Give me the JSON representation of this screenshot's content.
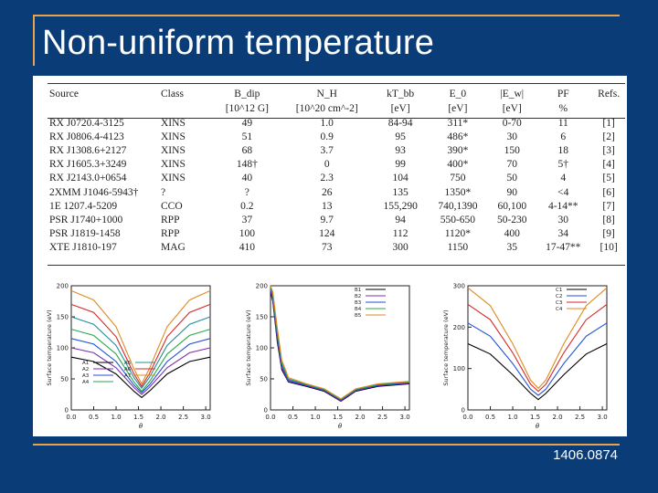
{
  "slide": {
    "title": "Non-uniform temperature",
    "footer": "1406.0874"
  },
  "table": {
    "headers": [
      "Source",
      "Class",
      "B_dip",
      "N_H",
      "kT_bb",
      "E_0",
      "|E_w|",
      "PF",
      "Refs."
    ],
    "units": [
      "",
      "",
      "[10^12 G]",
      "[10^20 cm^-2]",
      "[eV]",
      "[eV]",
      "[eV]",
      "%",
      ""
    ],
    "rows": [
      [
        "RX J0720.4-3125",
        "XINS",
        "49",
        "1.0",
        "84-94",
        "311*",
        "0-70",
        "11",
        "[1]"
      ],
      [
        "RX J0806.4-4123",
        "XINS",
        "51",
        "0.9",
        "95",
        "486*",
        "30",
        "6",
        "[2]"
      ],
      [
        "RX J1308.6+2127",
        "XINS",
        "68",
        "3.7",
        "93",
        "390*",
        "150",
        "18",
        "[3]"
      ],
      [
        "RX J1605.3+3249",
        "XINS",
        "148†",
        "0",
        "99",
        "400*",
        "70",
        "5†",
        "[4]"
      ],
      [
        "RX J2143.0+0654",
        "XINS",
        "40",
        "2.3",
        "104",
        "750",
        "50",
        "4",
        "[5]"
      ],
      [
        "2XMM J1046-5943†",
        "?",
        "?",
        "26",
        "135",
        "1350*",
        "90",
        "<4",
        "[6]"
      ],
      [
        "1E 1207.4-5209",
        "CCO",
        "0.2",
        "13",
        "155,290",
        "740,1390",
        "60,100",
        "4-14**",
        "[7]"
      ],
      [
        "PSR J1740+1000",
        "RPP",
        "37",
        "9.7",
        "94",
        "550-650",
        "50-230",
        "30",
        "[8]"
      ],
      [
        "PSR J1819-1458",
        "RPP",
        "100",
        "124",
        "112",
        "1120*",
        "400",
        "34",
        "[9]"
      ],
      [
        "XTE J1810-197",
        "MAG",
        "410",
        "73",
        "300",
        "1150",
        "35",
        "17-47**",
        "[10]"
      ]
    ]
  },
  "chart_data": [
    {
      "type": "line",
      "xlabel": "θ",
      "ylabel": "Surface temperature (eV)",
      "xlim": [
        0,
        3.1
      ],
      "ylim": [
        0,
        200
      ],
      "xticks": [
        "0.0",
        "0.5",
        "1.0",
        "1.5",
        "2.0",
        "2.5",
        "3.0"
      ],
      "yticks": [
        "0",
        "50",
        "100",
        "150",
        "200"
      ],
      "legend_position": "bottom-left",
      "series": [
        {
          "name": "A1",
          "color": "#000000",
          "values": [
            [
              0,
              85
            ],
            [
              0.5,
              78
            ],
            [
              1.0,
              58
            ],
            [
              1.4,
              30
            ],
            [
              1.57,
              20
            ],
            [
              1.74,
              30
            ],
            [
              2.14,
              58
            ],
            [
              2.64,
              78
            ],
            [
              3.14,
              85
            ]
          ]
        },
        {
          "name": "A2",
          "color": "#7b2fb0",
          "values": [
            [
              0,
              100
            ],
            [
              0.5,
              92
            ],
            [
              1.0,
              68
            ],
            [
              1.4,
              36
            ],
            [
              1.57,
              25
            ],
            [
              1.74,
              36
            ],
            [
              2.14,
              68
            ],
            [
              2.64,
              92
            ],
            [
              3.14,
              100
            ]
          ]
        },
        {
          "name": "A3",
          "color": "#1f4fd8",
          "values": [
            [
              0,
              115
            ],
            [
              0.5,
              106
            ],
            [
              1.0,
              78
            ],
            [
              1.4,
              40
            ],
            [
              1.57,
              28
            ],
            [
              1.74,
              40
            ],
            [
              2.14,
              78
            ],
            [
              2.64,
              106
            ],
            [
              3.14,
              115
            ]
          ]
        },
        {
          "name": "A4",
          "color": "#2aa84a",
          "values": [
            [
              0,
              130
            ],
            [
              0.5,
              120
            ],
            [
              1.0,
              90
            ],
            [
              1.4,
              45
            ],
            [
              1.57,
              30
            ],
            [
              1.74,
              45
            ],
            [
              2.14,
              90
            ],
            [
              2.64,
              120
            ],
            [
              3.14,
              130
            ]
          ]
        },
        {
          "name": "A5",
          "color": "#1f8f9a",
          "values": [
            [
              0,
              150
            ],
            [
              0.5,
              138
            ],
            [
              1.0,
              104
            ],
            [
              1.4,
              52
            ],
            [
              1.57,
              35
            ],
            [
              1.74,
              52
            ],
            [
              2.14,
              104
            ],
            [
              2.64,
              138
            ],
            [
              3.14,
              150
            ]
          ]
        },
        {
          "name": "A6",
          "color": "#d62728",
          "values": [
            [
              0,
              170
            ],
            [
              0.5,
              157
            ],
            [
              1.0,
              118
            ],
            [
              1.4,
              58
            ],
            [
              1.57,
              38
            ],
            [
              1.74,
              58
            ],
            [
              2.14,
              118
            ],
            [
              2.64,
              157
            ],
            [
              3.14,
              170
            ]
          ]
        },
        {
          "name": "A7",
          "color": "#e08a1e",
          "values": [
            [
              0,
              192
            ],
            [
              0.5,
              177
            ],
            [
              1.0,
              134
            ],
            [
              1.4,
              66
            ],
            [
              1.57,
              42
            ],
            [
              1.74,
              66
            ],
            [
              2.14,
              134
            ],
            [
              2.64,
              177
            ],
            [
              3.14,
              192
            ]
          ]
        }
      ]
    },
    {
      "type": "line",
      "xlabel": "θ",
      "ylabel": "Surface temperature (eV)",
      "xlim": [
        0,
        3.1
      ],
      "ylim": [
        0,
        200
      ],
      "xticks": [
        "0.0",
        "0.5",
        "1.0",
        "1.5",
        "2.0",
        "2.5",
        "3.0"
      ],
      "yticks": [
        "0",
        "50",
        "100",
        "150",
        "200"
      ],
      "legend_position": "top-right",
      "series": [
        {
          "name": "B1",
          "color": "#000000",
          "values": [
            [
              0,
              190
            ],
            [
              0.05,
              175
            ],
            [
              0.15,
              110
            ],
            [
              0.25,
              65
            ],
            [
              0.4,
              45
            ],
            [
              0.8,
              38
            ],
            [
              1.2,
              30
            ],
            [
              1.57,
              14
            ],
            [
              1.9,
              30
            ],
            [
              2.4,
              38
            ],
            [
              3.14,
              42
            ]
          ]
        },
        {
          "name": "B2",
          "color": "#7b2fb0",
          "values": [
            [
              0,
              192
            ],
            [
              0.05,
              178
            ],
            [
              0.15,
              115
            ],
            [
              0.25,
              68
            ],
            [
              0.4,
              46
            ],
            [
              0.8,
              39
            ],
            [
              1.2,
              31
            ],
            [
              1.57,
              15
            ],
            [
              1.9,
              31
            ],
            [
              2.4,
              39
            ],
            [
              3.14,
              43
            ]
          ]
        },
        {
          "name": "B3",
          "color": "#1f4fd8",
          "values": [
            [
              0,
              195
            ],
            [
              0.05,
              182
            ],
            [
              0.15,
              120
            ],
            [
              0.25,
              72
            ],
            [
              0.4,
              48
            ],
            [
              0.8,
              40
            ],
            [
              1.2,
              32
            ],
            [
              1.57,
              16
            ],
            [
              1.9,
              32
            ],
            [
              2.4,
              40
            ],
            [
              3.14,
              44
            ]
          ]
        },
        {
          "name": "B4",
          "color": "#2aa84a",
          "values": [
            [
              0,
              198
            ],
            [
              0.05,
              186
            ],
            [
              0.15,
              126
            ],
            [
              0.25,
              76
            ],
            [
              0.4,
              50
            ],
            [
              0.8,
              41
            ],
            [
              1.2,
              33
            ],
            [
              1.57,
              17
            ],
            [
              1.9,
              33
            ],
            [
              2.4,
              41
            ],
            [
              3.14,
              45
            ]
          ]
        },
        {
          "name": "B5",
          "color": "#e08a1e",
          "values": [
            [
              0,
              200
            ],
            [
              0.05,
              190
            ],
            [
              0.15,
              132
            ],
            [
              0.25,
              80
            ],
            [
              0.4,
              52
            ],
            [
              0.8,
              42
            ],
            [
              1.2,
              34
            ],
            [
              1.57,
              18
            ],
            [
              1.9,
              34
            ],
            [
              2.4,
              42
            ],
            [
              3.14,
              46
            ]
          ]
        }
      ]
    },
    {
      "type": "line",
      "xlabel": "θ",
      "ylabel": "Surface temperature (eV)",
      "xlim": [
        0,
        3.1
      ],
      "ylim": [
        0,
        300
      ],
      "xticks": [
        "0.0",
        "0.5",
        "1.0",
        "1.5",
        "2.0",
        "2.5",
        "3.0"
      ],
      "yticks": [
        "0",
        "100",
        "200",
        "300"
      ],
      "legend_position": "top-right",
      "series": [
        {
          "name": "C1",
          "color": "#000000",
          "values": [
            [
              0,
              160
            ],
            [
              0.5,
              135
            ],
            [
              1.0,
              85
            ],
            [
              1.4,
              40
            ],
            [
              1.57,
              25
            ],
            [
              1.74,
              40
            ],
            [
              2.14,
              85
            ],
            [
              2.64,
              135
            ],
            [
              3.14,
              160
            ]
          ]
        },
        {
          "name": "C2",
          "color": "#1f4fd8",
          "values": [
            [
              0,
              210
            ],
            [
              0.5,
              178
            ],
            [
              1.0,
              112
            ],
            [
              1.4,
              50
            ],
            [
              1.57,
              35
            ],
            [
              1.74,
              50
            ],
            [
              2.14,
              112
            ],
            [
              2.64,
              178
            ],
            [
              3.14,
              210
            ]
          ]
        },
        {
          "name": "C3",
          "color": "#d62728",
          "values": [
            [
              0,
              255
            ],
            [
              0.5,
              218
            ],
            [
              1.0,
              138
            ],
            [
              1.4,
              62
            ],
            [
              1.57,
              45
            ],
            [
              1.74,
              62
            ],
            [
              2.14,
              138
            ],
            [
              2.64,
              218
            ],
            [
              3.14,
              255
            ]
          ]
        },
        {
          "name": "C4",
          "color": "#e08a1e",
          "values": [
            [
              0,
              295
            ],
            [
              0.5,
              252
            ],
            [
              1.0,
              160
            ],
            [
              1.4,
              72
            ],
            [
              1.57,
              52
            ],
            [
              1.74,
              72
            ],
            [
              2.14,
              160
            ],
            [
              2.64,
              252
            ],
            [
              3.14,
              295
            ]
          ]
        }
      ]
    }
  ]
}
